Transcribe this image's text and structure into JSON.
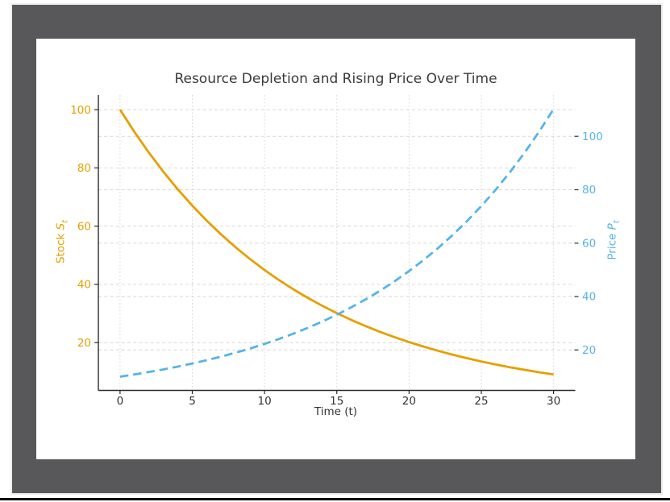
{
  "colors": {
    "frame": "#58585a",
    "background": "#ffffff",
    "title_text": "#3a3a3a",
    "axis_text": "#333333",
    "spine": "#2b2b2b",
    "grid": "#d2d2d2",
    "divider": "#000000"
  },
  "chart_data": {
    "type": "line",
    "title": "Resource Depletion and Rising Price Over Time",
    "xlabel": "Time (t)",
    "ylabel_left": {
      "prefix": "Stock ",
      "symbol": "S",
      "sub": "t"
    },
    "ylabel_right": {
      "prefix": "Price ",
      "symbol": "P",
      "sub": "t"
    },
    "x": [
      0,
      1,
      2,
      3,
      4,
      5,
      6,
      7,
      8,
      9,
      10,
      11,
      12,
      13,
      14,
      15,
      16,
      17,
      18,
      19,
      20,
      21,
      22,
      23,
      24,
      25,
      26,
      27,
      28,
      29,
      30
    ],
    "series": [
      {
        "key": "stock",
        "name": "Stock S_t",
        "axis": "left",
        "color": "#E69F00",
        "style": "solid",
        "values": [
          100,
          92.31,
          85.21,
          78.66,
          72.61,
          67.03,
          61.88,
          57.12,
          52.73,
          48.68,
          44.93,
          41.48,
          38.29,
          35.35,
          32.63,
          30.12,
          27.8,
          25.67,
          23.69,
          21.87,
          20.19,
          18.64,
          17.2,
          15.88,
          14.66,
          13.53,
          12.49,
          11.53,
          10.65,
          9.83,
          9.07
        ]
      },
      {
        "key": "price",
        "name": "Price P_t",
        "axis": "right",
        "color": "#56B4E9",
        "style": "dashed",
        "values": [
          10,
          10.83,
          11.74,
          12.71,
          13.77,
          14.92,
          16.16,
          17.51,
          18.96,
          20.54,
          22.26,
          24.11,
          26.12,
          28.29,
          30.65,
          33.2,
          35.97,
          38.96,
          42.21,
          45.72,
          49.53,
          53.66,
          58.12,
          62.97,
          68.21,
          73.89,
          80.04,
          86.71,
          93.93,
          101.76,
          110.23
        ]
      }
    ],
    "x_ticks": [
      0,
      5,
      10,
      15,
      20,
      25,
      30
    ],
    "y_ticks_left": [
      20,
      40,
      60,
      80,
      100
    ],
    "y_ticks_right": [
      20,
      40,
      60,
      80,
      100
    ],
    "xlim": [
      -1.5,
      31.5
    ],
    "ylim_left": [
      3.6,
      105.0
    ],
    "ylim_right": [
      4.85,
      115.45
    ],
    "grid": true,
    "legend": "none"
  }
}
